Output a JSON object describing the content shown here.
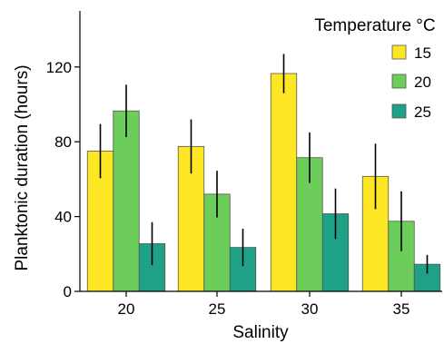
{
  "chart_data": {
    "type": "bar",
    "xlabel": "Salinity",
    "ylabel": "Planktonic duration (hours)",
    "categories": [
      "20",
      "25",
      "30",
      "35"
    ],
    "ylim": [
      0,
      150
    ],
    "yticks": [
      0,
      40,
      80,
      120
    ],
    "grid": false,
    "legend_title": "Temperature °C",
    "legend_position": "top-right",
    "error_bars": true,
    "series": [
      {
        "name": "15",
        "color": "#fde725",
        "values": [
          75,
          77.5,
          116.5,
          61.5
        ],
        "errors": [
          14.5,
          14.5,
          10.5,
          17.5
        ]
      },
      {
        "name": "20",
        "color": "#6ccd5a",
        "values": [
          96.5,
          52,
          71.5,
          37.5
        ],
        "errors": [
          14,
          12.5,
          13.5,
          16
        ]
      },
      {
        "name": "25",
        "color": "#1fa187",
        "values": [
          25.5,
          23.5,
          41.5,
          14.5
        ],
        "errors": [
          11.5,
          10,
          13.5,
          5
        ]
      }
    ]
  }
}
